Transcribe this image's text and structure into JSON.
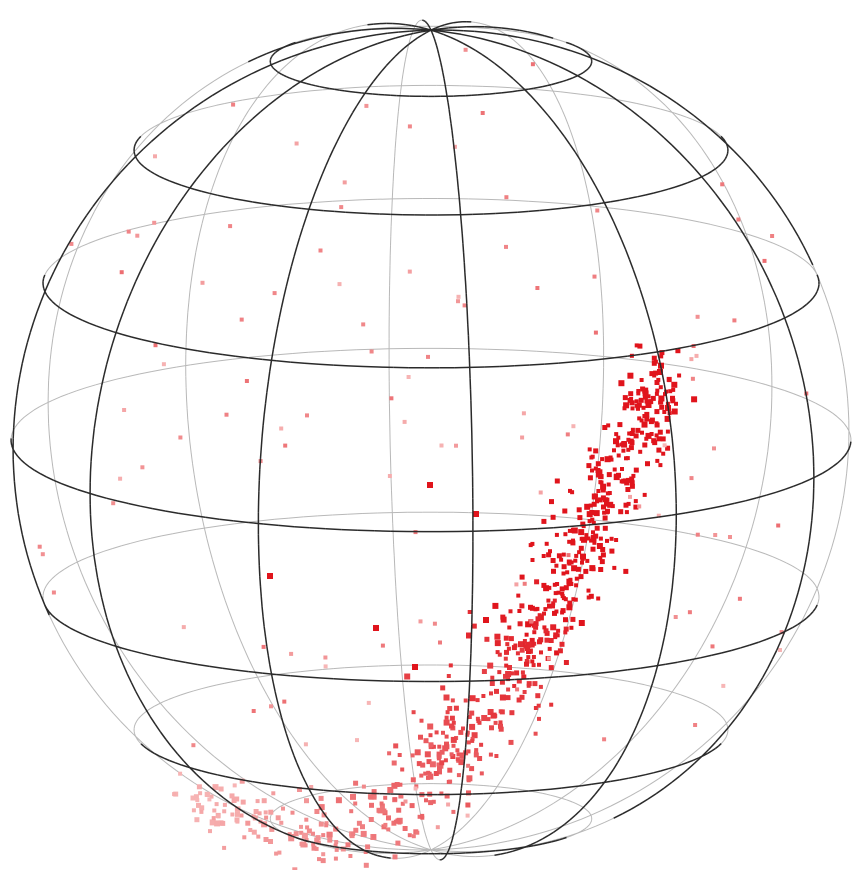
{
  "scene": {
    "description_colors": {
      "background": "#ffffff",
      "front_grid": "#2a2a2a",
      "back_grid": "#b8b8b8",
      "near_point": "#e0141c",
      "far_point": "#f7b7b7"
    },
    "grid": {
      "latitude_count": 7,
      "meridian_count": 12
    },
    "point_band": {
      "approx_point_count": 900
    }
  }
}
